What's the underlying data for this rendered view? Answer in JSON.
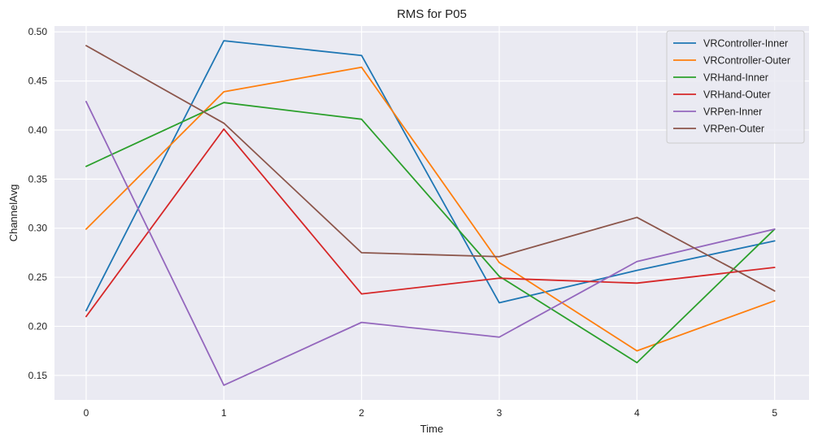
{
  "chart_data": {
    "type": "line",
    "title": "RMS for P05",
    "xlabel": "Time",
    "ylabel": "ChannelAvg",
    "x": [
      0,
      1,
      2,
      3,
      4,
      5
    ],
    "xlim": [
      -0.23,
      5.25
    ],
    "ylim": [
      0.125,
      0.506
    ],
    "yticks": [
      0.15,
      0.2,
      0.25,
      0.3,
      0.35,
      0.4,
      0.45,
      0.5
    ],
    "xticks": [
      0,
      1,
      2,
      3,
      4,
      5
    ],
    "grid": true,
    "legend_position": "top-right",
    "series": [
      {
        "name": "VRController-Inner",
        "color": "#1f77b4",
        "values": [
          0.216,
          0.491,
          0.476,
          0.224,
          0.257,
          0.287
        ]
      },
      {
        "name": "VRController-Outer",
        "color": "#ff7f0e",
        "values": [
          0.299,
          0.439,
          0.464,
          0.265,
          0.175,
          0.226
        ]
      },
      {
        "name": "VRHand-Inner",
        "color": "#2ca02c",
        "values": [
          0.363,
          0.428,
          0.411,
          0.251,
          0.163,
          0.299
        ]
      },
      {
        "name": "VRHand-Outer",
        "color": "#d62728",
        "values": [
          0.21,
          0.401,
          0.233,
          0.249,
          0.244,
          0.26
        ]
      },
      {
        "name": "VRPen-Inner",
        "color": "#9467bd",
        "values": [
          0.429,
          0.14,
          0.204,
          0.189,
          0.266,
          0.299
        ]
      },
      {
        "name": "VRPen-Outer",
        "color": "#8c564b",
        "values": [
          0.486,
          0.407,
          0.275,
          0.271,
          0.311,
          0.236
        ]
      }
    ]
  }
}
